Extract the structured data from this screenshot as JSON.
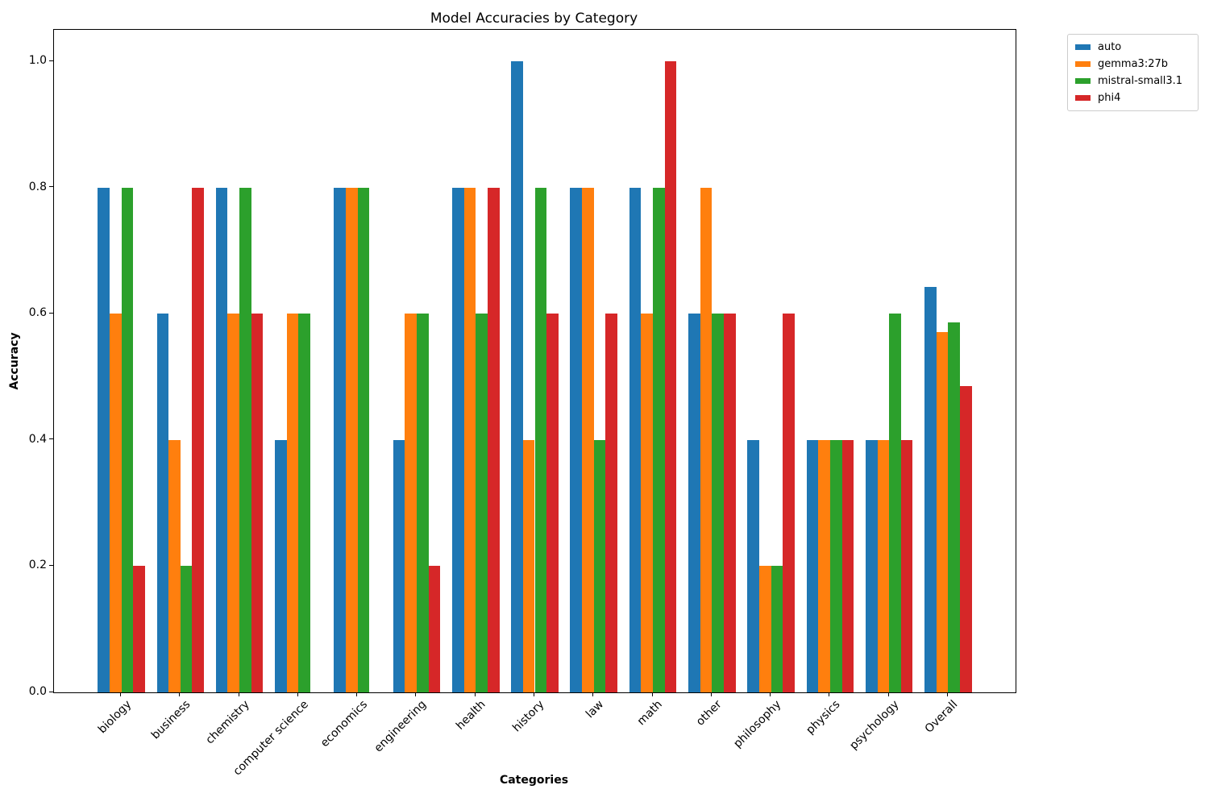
{
  "title": "Model Accuracies by Category",
  "chart_data": {
    "type": "bar",
    "title": "Model Accuracies by Category",
    "xlabel": "Categories",
    "ylabel": "Accuracy",
    "categories": [
      "biology",
      "business",
      "chemistry",
      "computer science",
      "economics",
      "engineering",
      "health",
      "history",
      "law",
      "math",
      "other",
      "philosophy",
      "physics",
      "psychology",
      "Overall"
    ],
    "series": [
      {
        "name": "auto",
        "color": "#1f77b4",
        "values": [
          0.8,
          0.6,
          0.8,
          0.4,
          0.8,
          0.4,
          0.8,
          1.0,
          0.8,
          0.8,
          0.6,
          0.4,
          0.4,
          0.4,
          0.6429
        ]
      },
      {
        "name": "gemma3:27b",
        "color": "#ff7f0e",
        "values": [
          0.6,
          0.4,
          0.6,
          0.6,
          0.8,
          0.6,
          0.8,
          0.4,
          0.8,
          0.6,
          0.8,
          0.2,
          0.4,
          0.4,
          0.5714
        ]
      },
      {
        "name": "mistral-small3.1",
        "color": "#2ca02c",
        "values": [
          0.8,
          0.2,
          0.8,
          0.6,
          0.8,
          0.6,
          0.6,
          0.8,
          0.4,
          0.8,
          0.6,
          0.2,
          0.4,
          0.6,
          0.5857
        ]
      },
      {
        "name": "phi4",
        "color": "#d62728",
        "values": [
          0.2,
          0.8,
          0.6,
          0.0,
          0.0,
          0.2,
          0.8,
          0.6,
          0.6,
          1.0,
          0.6,
          0.6,
          0.4,
          0.4,
          0.4857
        ]
      }
    ],
    "ylim": [
      0,
      1.05
    ],
    "yticks": [
      0.0,
      0.2,
      0.4,
      0.6,
      0.8,
      1.0
    ],
    "grid": false,
    "legend_position": "upper-right-outside"
  }
}
